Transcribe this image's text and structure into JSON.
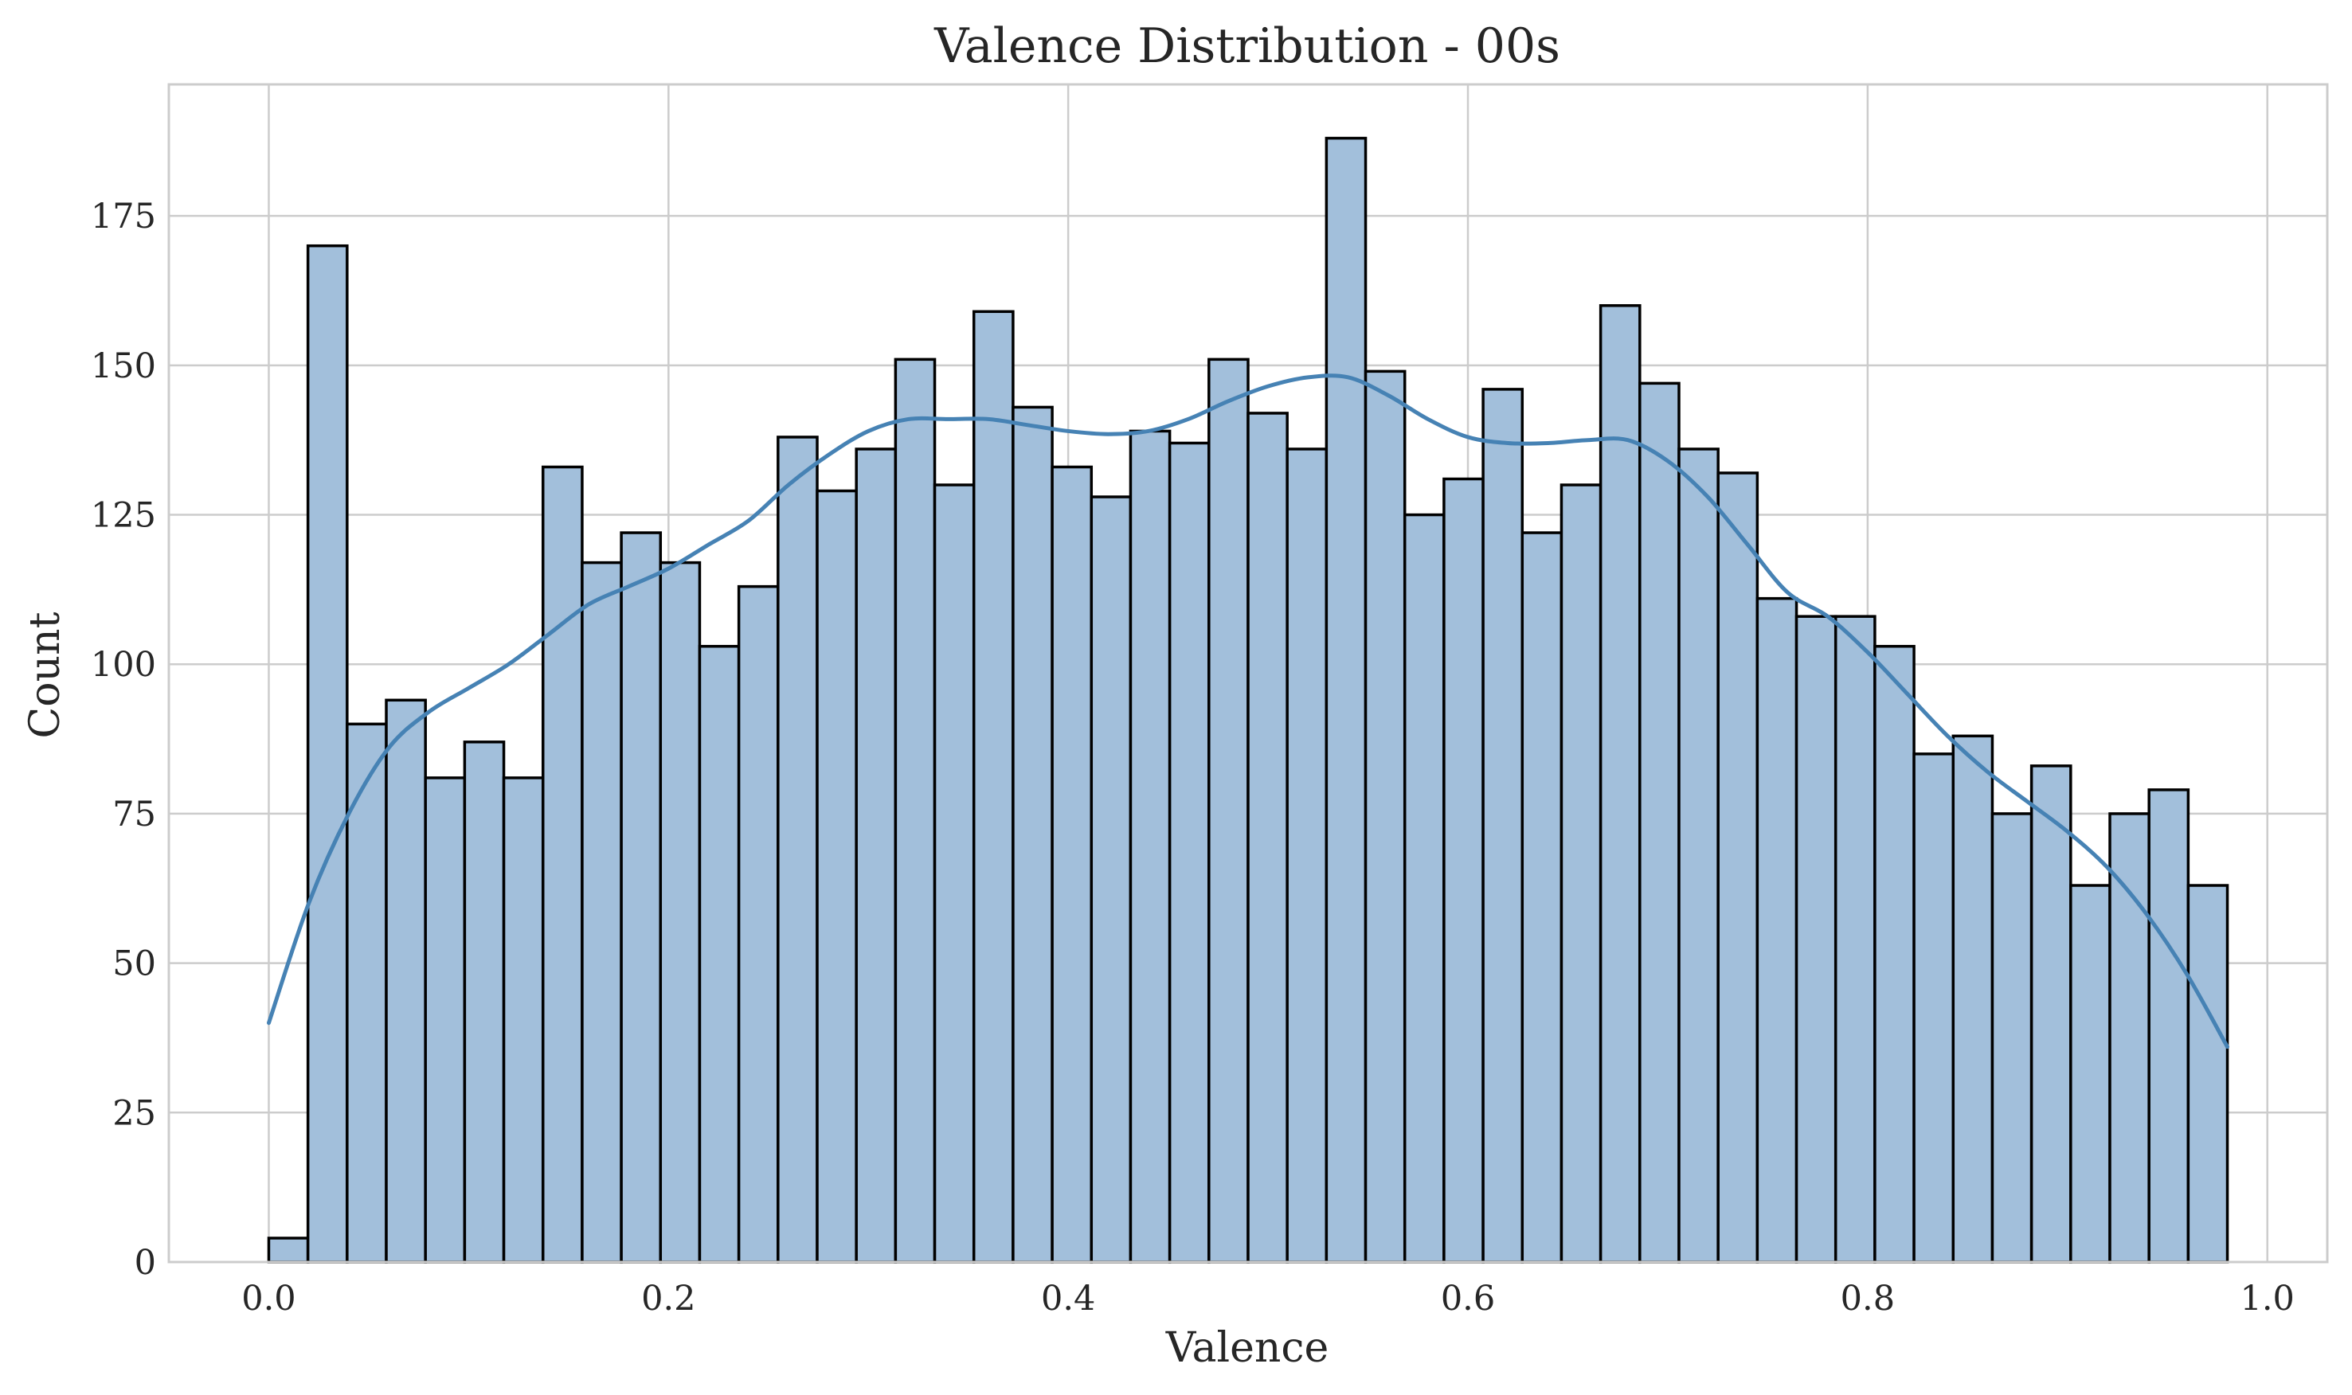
{
  "chart_data": {
    "type": "bar",
    "title": "Valence Distribution - 00s",
    "xlabel": "Valence",
    "ylabel": "Count",
    "xlim": [
      -0.05,
      1.03
    ],
    "ylim": [
      0,
      197
    ],
    "x_ticks": [
      0.0,
      0.2,
      0.4,
      0.6,
      0.8,
      1.0
    ],
    "x_tick_labels": [
      "0.0",
      "0.2",
      "0.4",
      "0.6",
      "0.8",
      "1.0"
    ],
    "y_ticks": [
      0,
      25,
      50,
      75,
      100,
      125,
      150,
      175
    ],
    "y_tick_labels": [
      "0",
      "25",
      "50",
      "75",
      "100",
      "125",
      "150",
      "175"
    ],
    "grid": true,
    "legend": "none",
    "bin_start": 0.0,
    "bin_width": 0.0196,
    "counts": [
      4,
      170,
      90,
      94,
      81,
      87,
      81,
      133,
      117,
      122,
      117,
      103,
      113,
      138,
      129,
      136,
      151,
      130,
      159,
      143,
      133,
      128,
      139,
      137,
      151,
      142,
      136,
      188,
      149,
      125,
      131,
      146,
      122,
      130,
      160,
      147,
      136,
      132,
      111,
      108,
      108,
      103,
      85,
      88,
      75,
      83,
      63,
      75,
      79,
      63
    ],
    "kde": {
      "x": [
        0.0,
        0.02,
        0.04,
        0.06,
        0.08,
        0.1,
        0.12,
        0.14,
        0.16,
        0.18,
        0.2,
        0.22,
        0.24,
        0.26,
        0.28,
        0.3,
        0.32,
        0.34,
        0.36,
        0.38,
        0.4,
        0.42,
        0.44,
        0.46,
        0.48,
        0.5,
        0.52,
        0.54,
        0.56,
        0.58,
        0.6,
        0.62,
        0.64,
        0.66,
        0.68,
        0.7,
        0.72,
        0.74,
        0.76,
        0.78,
        0.8,
        0.82,
        0.84,
        0.86,
        0.88,
        0.9,
        0.92,
        0.94,
        0.96,
        0.98
      ],
      "y": [
        40,
        60,
        75,
        86,
        92,
        96,
        100,
        105,
        110,
        113,
        116,
        120,
        124,
        130,
        135,
        139,
        141,
        141,
        141,
        140,
        139,
        138.5,
        139,
        141,
        144,
        146.5,
        148,
        148,
        145,
        141,
        138,
        137,
        137,
        137.5,
        137.5,
        134,
        128,
        120,
        112,
        108,
        102,
        95,
        88,
        82,
        77,
        72,
        66,
        58,
        48,
        36
      ]
    },
    "colors": {
      "bar_fill": "#a2bfdb",
      "bar_edge": "#000000",
      "kde_line": "#4682b4",
      "grid": "#cccccc"
    }
  }
}
